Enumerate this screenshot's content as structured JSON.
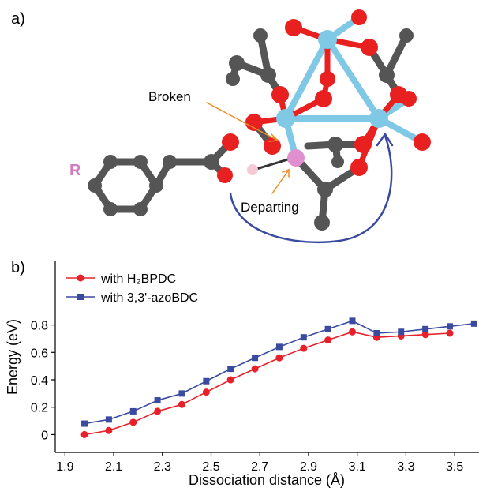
{
  "panel_a": {
    "label": "a)",
    "group_label": "R",
    "annotations": [
      "Broken",
      "Departing"
    ]
  },
  "chart_data": {
    "type": "line",
    "panel_label": "b)",
    "x_label": "Dissociation distance (Å)",
    "y_label": "Energy (eV)",
    "x": [
      1.98,
      2.08,
      2.18,
      2.28,
      2.38,
      2.48,
      2.58,
      2.68,
      2.78,
      2.88,
      2.98,
      3.08,
      3.18,
      3.28,
      3.38,
      3.48,
      3.58
    ],
    "series": [
      {
        "name": "with H₂BPDC",
        "color": "#e8202a",
        "marker": "circle",
        "values": [
          0,
          0.03,
          0.09,
          0.17,
          0.22,
          0.31,
          0.4,
          0.48,
          0.56,
          0.63,
          0.69,
          0.75,
          0.71,
          0.72,
          0.73,
          0.74,
          null
        ]
      },
      {
        "name": "with 3,3'-azoBDC",
        "color": "#3a4aa0",
        "marker": "square",
        "values": [
          0.08,
          0.11,
          0.17,
          0.25,
          0.3,
          0.39,
          0.48,
          0.56,
          0.64,
          0.71,
          0.77,
          0.83,
          0.74,
          0.75,
          0.77,
          0.79,
          0.81
        ]
      }
    ],
    "xlim": [
      1.86,
      3.6
    ],
    "ylim": [
      -0.13,
      1.27
    ],
    "xticks": [
      1.9,
      2.1,
      2.3,
      2.5,
      2.7,
      2.9,
      3.1,
      3.3,
      3.5
    ],
    "yticks": [
      0,
      0.2,
      0.4,
      0.6,
      0.8
    ],
    "legend": "upper left",
    "grid": false
  }
}
